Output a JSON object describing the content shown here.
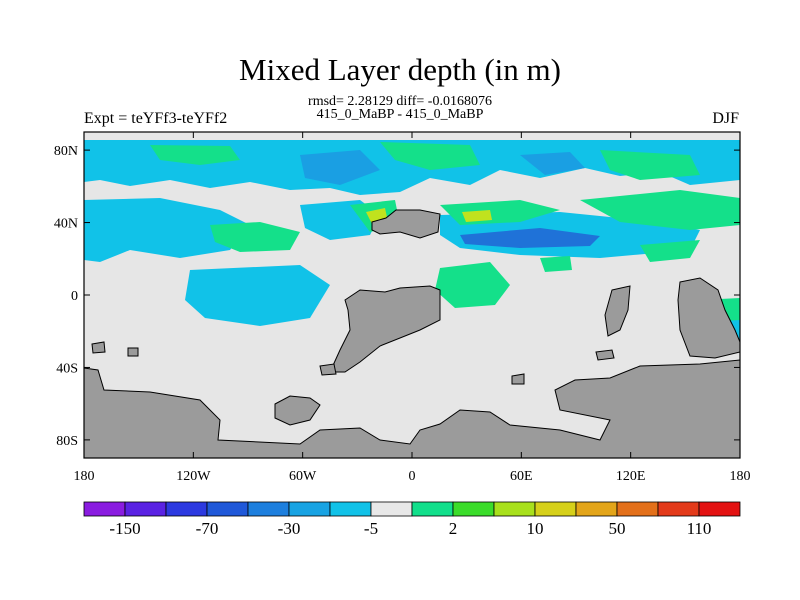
{
  "title": "Mixed Layer depth (in m)",
  "stats": "rmsd= 2.28129 diff= -0.0168076",
  "experiment": "415_0_MaBP - 415_0_MaBP",
  "left_label": "Expt = teYFf3-teYFf2",
  "right_label": "DJF",
  "colors": {
    "land": "#9b9b9b",
    "neutral": "#e6e6e6",
    "cyan": "#11c2e8",
    "light_blue": "#1a9fe3",
    "blue": "#1f72d8",
    "green": "#14e08a",
    "light_green": "#46e23b",
    "yellow": "#c0e21e"
  },
  "chart_data": {
    "type": "heatmap",
    "title": "Mixed Layer depth (in m)",
    "x_ticks": [
      "180",
      "120W",
      "60W",
      "0",
      "60E",
      "120E",
      "180"
    ],
    "y_ticks": [
      "80N",
      "40N",
      "0",
      "40S",
      "80S"
    ],
    "xlim": [
      -180,
      180
    ],
    "ylim": [
      -90,
      90
    ],
    "colorbar": {
      "labels": [
        "-150",
        "-70",
        "-30",
        "-5",
        "2",
        "10",
        "50",
        "110"
      ],
      "colors": [
        "#8a1ce0",
        "#5a22e3",
        "#2c39e0",
        "#1f58d9",
        "#1d7fde",
        "#18a3e3",
        "#11c2e8",
        "#e8e8e8",
        "#12df8b",
        "#3bdc2a",
        "#a8e01c",
        "#d6d01a",
        "#e3a51a",
        "#e3701a",
        "#e33a1a",
        "#e31212"
      ]
    }
  }
}
